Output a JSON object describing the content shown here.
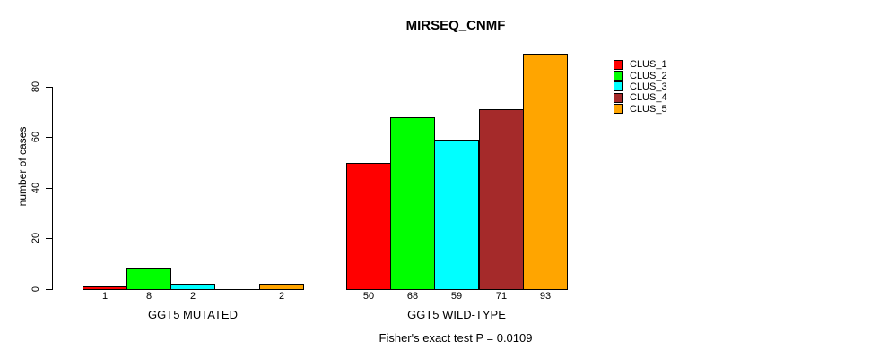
{
  "chart_data": {
    "type": "bar",
    "title": "MIRSEQ_CNMF",
    "ylabel": "number of cases",
    "xlabel": "",
    "ylim": [
      0,
      97
    ],
    "yticks": [
      0,
      20,
      40,
      60,
      80
    ],
    "grid": false,
    "legend_position": "right-outside",
    "categories": [
      "GGT5 MUTATED",
      "GGT5 WILD-TYPE"
    ],
    "series": [
      {
        "name": "CLUS_1",
        "color": "#FF0000",
        "values": [
          1,
          50
        ]
      },
      {
        "name": "CLUS_2",
        "color": "#00FF00",
        "values": [
          8,
          68
        ]
      },
      {
        "name": "CLUS_3",
        "color": "#00FFFF",
        "values": [
          2,
          59
        ]
      },
      {
        "name": "CLUS_4",
        "color": "#A52A2A",
        "values": [
          0,
          71
        ]
      },
      {
        "name": "CLUS_5",
        "color": "#FFA500",
        "values": [
          2,
          93
        ]
      }
    ],
    "bar_value_labels": [
      [
        "1",
        "8",
        "2",
        "",
        "2"
      ],
      [
        "50",
        "68",
        "59",
        "71",
        "93"
      ]
    ],
    "annotation": "Fisher's exact test P = 0.0109"
  }
}
